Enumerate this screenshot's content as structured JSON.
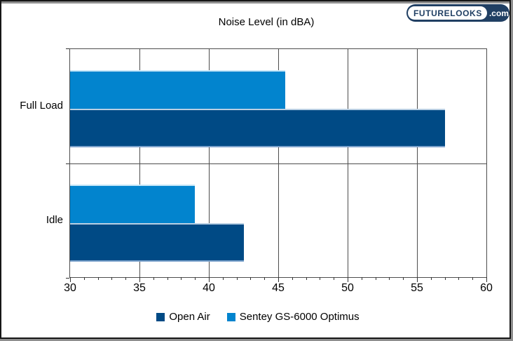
{
  "logo": {
    "brand": "FUTURELOOKS",
    "suffix": ".com",
    "bg_color": "#203f63",
    "text_color": "#203f63"
  },
  "chart_data": {
    "type": "bar",
    "orientation": "horizontal",
    "title": "Noise Level (in dBA)",
    "categories": [
      "Full Load",
      "Idle"
    ],
    "series": [
      {
        "name": "Open Air",
        "color": "#004a85",
        "edge_top": "#b9cfe3",
        "edge_bottom": "#7da2cc",
        "values": [
          57,
          42.5
        ]
      },
      {
        "name": "Sentey GS-6000 Optimus",
        "color": "#0284ce",
        "edge_top": "#c6e6f8",
        "edge_bottom": "",
        "values": [
          45.5,
          39
        ]
      }
    ],
    "xlim": [
      30,
      60
    ],
    "x_major_step": 5,
    "x_minor_step": 1,
    "x_ticks": [
      "30",
      "35",
      "40",
      "45",
      "50",
      "55",
      "60"
    ],
    "grid": "vertical-major",
    "legend_position": "bottom"
  }
}
